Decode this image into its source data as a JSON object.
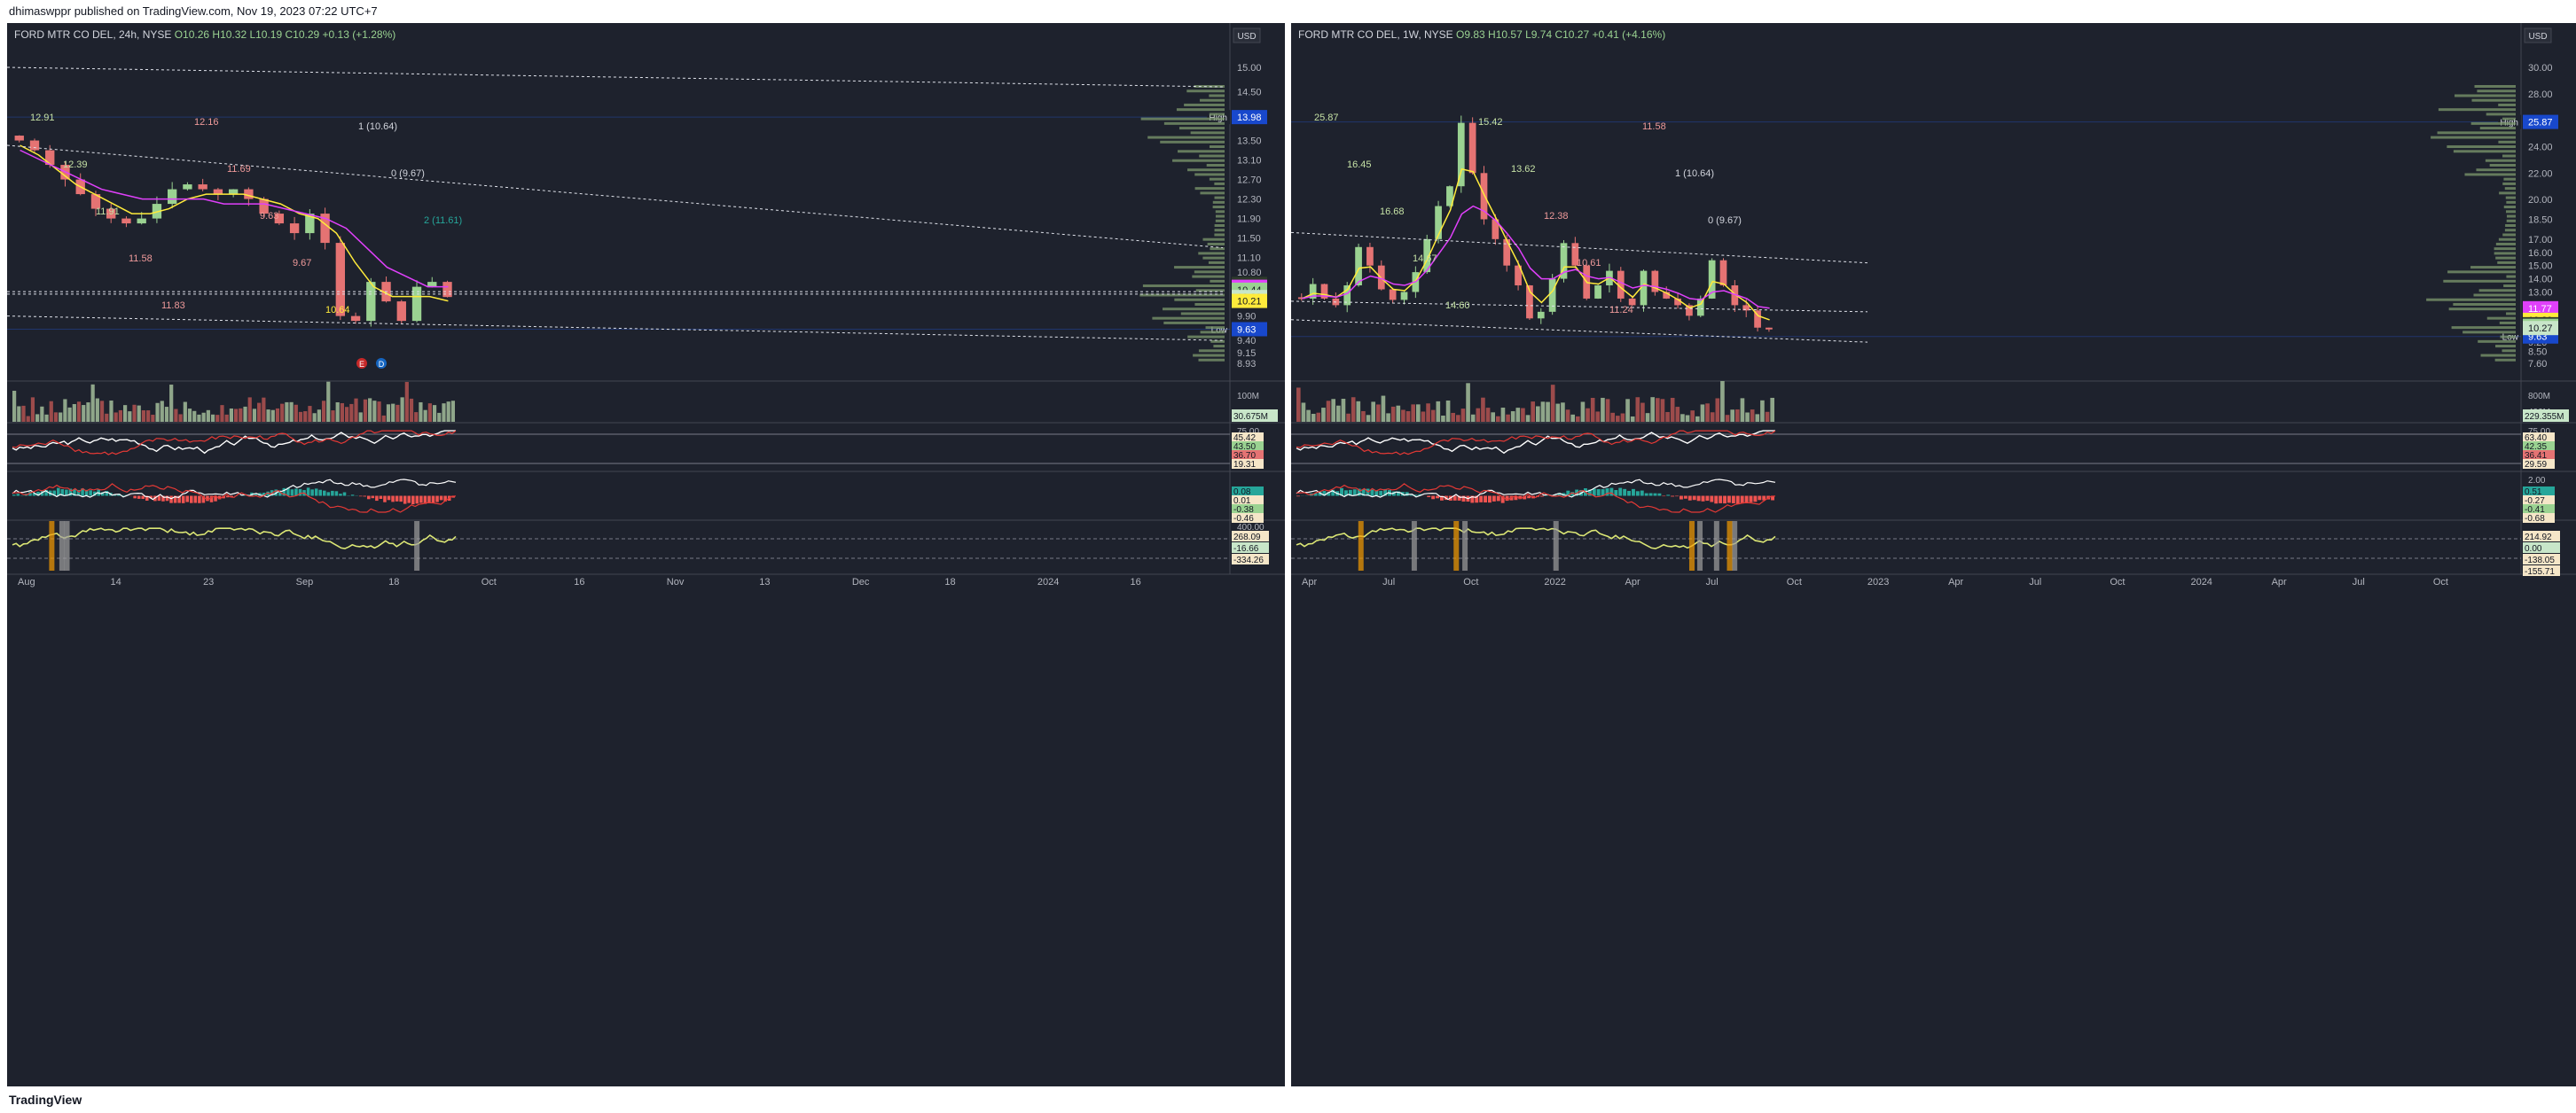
{
  "publisher_line": "dhimaswppr published on TradingView.com, Nov 19, 2023 07:22 UTC+7",
  "footer_brand": "TradingView",
  "charts": [
    {
      "id": "left",
      "title": "FORD MTR CO DEL, 24h, NYSE",
      "ohlc": "O10.26 H10.32 L10.19 C10.29 +0.13 (+1.28%)",
      "currency": "USD",
      "price_ticks": [
        "15.00",
        "14.50",
        "13.98",
        "13.50",
        "13.10",
        "12.70",
        "12.30",
        "11.90",
        "11.50",
        "11.10",
        "10.80",
        "10.50",
        "10.21",
        "9.90",
        "9.63",
        "9.40",
        "9.15",
        "8.93"
      ],
      "time_labels": [
        "Aug",
        "14",
        "23",
        "Sep",
        "18",
        "Oct",
        "16",
        "Nov",
        "13",
        "Dec",
        "18",
        "2024",
        "16"
      ],
      "hl_labels": {
        "high_tag": "High",
        "high_value": "13.98",
        "low_tag": "Low",
        "low_value": "9.63"
      },
      "price_tags": [
        {
          "value": "10.56",
          "color": "#2c3a2a",
          "text_color": "#d1d4dc"
        },
        {
          "value": "10.50",
          "color": "#e040fb",
          "text_color": "#ffffff"
        },
        {
          "value": "10.44",
          "color": "#9ad291",
          "text_color": "#131722"
        },
        {
          "value": "10.29",
          "color": "#c8e6c9",
          "text_color": "#131722"
        },
        {
          "value": "10.21",
          "color": "#ffeb3b",
          "text_color": "#131722"
        }
      ],
      "annotations": [
        {
          "text": "12.91",
          "color": "#c5e1a5"
        },
        {
          "text": "12.39",
          "color": "#c5e1a5"
        },
        {
          "text": "11.91",
          "color": "#c5e1a5"
        },
        {
          "text": "11.58",
          "color": "#ef9a9a"
        },
        {
          "text": "11.83",
          "color": "#ef9a9a"
        },
        {
          "text": "12.16",
          "color": "#ef9a9a"
        },
        {
          "text": "11.69",
          "color": "#ef9a9a"
        },
        {
          "text": "9.63",
          "color": "#ef9a9a"
        },
        {
          "text": "9.67",
          "color": "#ef9a9a"
        },
        {
          "text": "10.64",
          "color": "#ffeb3b"
        },
        {
          "text": "1 (10.64)",
          "color": "#d1d4dc"
        },
        {
          "text": "0 (9.67)",
          "color": "#d1d4dc"
        },
        {
          "text": "2 (11.61)",
          "color": "#26a69a"
        }
      ],
      "event_markers": [
        "E",
        "D"
      ],
      "volume_label": "100M",
      "volume_tag": "30.675M",
      "rsi": {
        "tick": "75.00",
        "tags": [
          "45.42",
          "43.50",
          "36.70",
          "19.31"
        ]
      },
      "macd": {
        "tags": [
          "0.08",
          "0.01",
          "-0.38",
          "-0.46"
        ]
      },
      "cci": {
        "tick": "400.00",
        "tags": [
          "268.09",
          "-16.66",
          "-334.26"
        ]
      }
    },
    {
      "id": "right",
      "title": "FORD MTR CO DEL, 1W, NYSE",
      "ohlc": "O9.83 H10.57 L9.74 C10.27 +0.41 (+4.16%)",
      "currency": "USD",
      "price_ticks": [
        "30.00",
        "28.00",
        "25.87",
        "24.00",
        "22.00",
        "20.00",
        "18.50",
        "17.00",
        "16.00",
        "15.00",
        "14.00",
        "13.00",
        "12.00",
        "11.00",
        "10.56",
        "9.63",
        "9.20",
        "8.50",
        "7.60"
      ],
      "time_labels": [
        "Apr",
        "Jul",
        "Oct",
        "2022",
        "Apr",
        "Jul",
        "Oct",
        "2023",
        "Apr",
        "Jul",
        "Oct",
        "2024",
        "Apr",
        "Jul",
        "Oct"
      ],
      "hl_labels": {
        "high_tag": "High",
        "high_value": "25.87",
        "low_tag": "Low",
        "low_value": "9.63"
      },
      "price_tags": [
        {
          "value": "11.77",
          "color": "#e040fb",
          "text_color": "#ffffff"
        },
        {
          "value": "10.89",
          "color": "#ffeb3b",
          "text_color": "#131722"
        },
        {
          "value": "10.56",
          "color": "#2c3a2a",
          "text_color": "#d1d4dc"
        },
        {
          "value": "10.44",
          "color": "#9ad291",
          "text_color": "#131722"
        },
        {
          "value": "10.27",
          "color": "#c8e6c9",
          "text_color": "#131722"
        }
      ],
      "annotations": [
        {
          "text": "25.87",
          "color": "#c5e1a5"
        },
        {
          "text": "16.45",
          "color": "#c5e1a5"
        },
        {
          "text": "16.68",
          "color": "#c5e1a5"
        },
        {
          "text": "14.67",
          "color": "#c5e1a5"
        },
        {
          "text": "14.60",
          "color": "#c5e1a5"
        },
        {
          "text": "15.42",
          "color": "#c5e1a5"
        },
        {
          "text": "13.62",
          "color": "#c5e1a5"
        },
        {
          "text": "12.38",
          "color": "#ef9a9a"
        },
        {
          "text": "10.61",
          "color": "#ef9a9a"
        },
        {
          "text": "11.24",
          "color": "#ef9a9a"
        },
        {
          "text": "11.58",
          "color": "#ef9a9a"
        },
        {
          "text": "1 (10.64)",
          "color": "#d1d4dc"
        },
        {
          "text": "0 (9.67)",
          "color": "#d1d4dc"
        }
      ],
      "event_markers": [],
      "volume_label": "800M",
      "volume_label_2": "400M",
      "volume_tag": "229.355M",
      "rsi": {
        "tick": "75.00",
        "tags": [
          "63.40",
          "42.35",
          "36.41",
          "29.59"
        ]
      },
      "macd": {
        "tick": "2.00",
        "tags": [
          "0.51",
          "-0.27",
          "-0.41",
          "-0.68"
        ]
      },
      "cci": {
        "tags": [
          "214.92",
          "0.00",
          "-138.05",
          "-155.71"
        ]
      }
    }
  ],
  "chart_data": [
    {
      "type": "line",
      "title": "FORD MTR CO DEL, 24h, NYSE",
      "series": [
        {
          "name": "close_approx",
          "values": [
            13.5,
            13.3,
            13.0,
            12.7,
            12.4,
            12.1,
            11.9,
            11.8,
            11.9,
            12.2,
            12.5,
            12.6,
            12.5,
            12.4,
            12.5,
            12.3,
            12.0,
            11.8,
            11.6,
            12.0,
            11.4,
            9.9,
            9.8,
            10.6,
            10.2,
            9.8,
            10.5,
            10.6,
            10.29
          ]
        },
        {
          "name": "ema_fast",
          "values": [
            13.4,
            13.2,
            12.9,
            12.6,
            12.4,
            12.2,
            12.0,
            12.0,
            12.1,
            12.3,
            12.4,
            12.4,
            12.4,
            12.3,
            12.2,
            12.0,
            11.9,
            11.6,
            11.0,
            10.5,
            10.3,
            10.3,
            10.3,
            10.21
          ]
        },
        {
          "name": "ema_slow",
          "values": [
            13.3,
            13.1,
            12.9,
            12.7,
            12.5,
            12.4,
            12.3,
            12.3,
            12.3,
            12.3,
            12.2,
            12.2,
            12.2,
            12.1,
            12.0,
            11.9,
            11.7,
            11.3,
            10.9,
            10.7,
            10.5,
            10.5
          ]
        }
      ],
      "ylim": [
        8.93,
        15.0
      ]
    },
    {
      "type": "line",
      "title": "FORD MTR CO DEL, 1W, NYSE",
      "series": [
        {
          "name": "close_approx",
          "values": [
            12.5,
            13.6,
            12.5,
            12.0,
            13.5,
            16.4,
            15.0,
            13.2,
            12.4,
            13.0,
            14.5,
            17.0,
            19.5,
            21.0,
            25.8,
            22.0,
            18.5,
            17.0,
            15.0,
            13.5,
            11.0,
            11.5,
            14.0,
            16.7,
            15.0,
            12.5,
            13.5,
            14.6,
            12.5,
            12.0,
            14.6,
            13.0,
            12.5,
            12.0,
            11.2,
            12.5,
            15.4,
            13.5,
            12.0,
            11.6,
            10.3,
            10.27
          ]
        },
        {
          "name": "ema_fast",
          "values": [
            12.5,
            12.9,
            12.8,
            12.6,
            13.2,
            14.8,
            14.9,
            14.0,
            13.2,
            13.1,
            13.9,
            15.5,
            17.4,
            19.2,
            22.3,
            22.1,
            20.3,
            18.6,
            16.8,
            15.1,
            13.0,
            12.2,
            13.1,
            14.9,
            14.9,
            13.7,
            13.6,
            14.1,
            13.3,
            12.6,
            13.6,
            13.3,
            12.9,
            12.4,
            11.8,
            12.1,
            13.8,
            13.6,
            12.8,
            12.2,
            11.2,
            10.89
          ]
        },
        {
          "name": "ema_slow",
          "values": [
            12.5,
            12.7,
            12.7,
            12.6,
            12.9,
            13.8,
            14.2,
            14.0,
            13.6,
            13.5,
            13.8,
            14.7,
            15.9,
            17.1,
            18.9,
            19.5,
            19.1,
            18.4,
            17.4,
            16.3,
            14.8,
            14.0,
            14.0,
            14.5,
            14.7,
            14.2,
            14.0,
            14.1,
            13.7,
            13.3,
            13.5,
            13.4,
            13.2,
            12.9,
            12.5,
            12.4,
            13.0,
            13.1,
            12.8,
            12.5,
            11.9,
            11.77
          ]
        }
      ],
      "ylim": [
        7.6,
        30.0
      ]
    }
  ]
}
